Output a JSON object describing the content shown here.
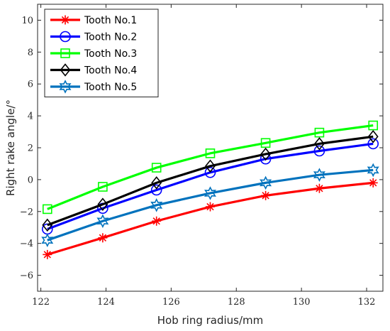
{
  "chart_data": {
    "type": "line",
    "title": "",
    "xlabel": "Hob ring radius/mm",
    "ylabel": "Right rake angle/°",
    "xlim": [
      121.9,
      132.5
    ],
    "ylim": [
      -7,
      11
    ],
    "xticks": [
      122,
      124,
      126,
      128,
      130,
      132
    ],
    "yticks": [
      -6,
      -4,
      -2,
      0,
      2,
      4,
      6,
      8,
      10
    ],
    "grid": false,
    "legend_position": "top-left",
    "x": [
      122.2,
      123.9,
      125.55,
      127.2,
      128.9,
      130.55,
      132.2
    ],
    "series": [
      {
        "name": "Tooth No.1",
        "color": "#ff0000",
        "marker": "asterisk",
        "values": [
          -4.7,
          -3.65,
          -2.6,
          -1.7,
          -1.0,
          -0.55,
          -0.2
        ]
      },
      {
        "name": "Tooth No.2",
        "color": "#0000ff",
        "marker": "circle",
        "values": [
          -3.1,
          -1.8,
          -0.65,
          0.45,
          1.3,
          1.8,
          2.25
        ]
      },
      {
        "name": "Tooth No.3",
        "color": "#00ff00",
        "marker": "square",
        "values": [
          -1.85,
          -0.45,
          0.75,
          1.65,
          2.3,
          2.95,
          3.4
        ]
      },
      {
        "name": "Tooth No.4",
        "color": "#000000",
        "marker": "diamond",
        "values": [
          -2.85,
          -1.55,
          -0.2,
          0.85,
          1.6,
          2.25,
          2.7
        ]
      },
      {
        "name": "Tooth No.5",
        "color": "#0072bd",
        "marker": "hexagram",
        "values": [
          -3.8,
          -2.6,
          -1.6,
          -0.85,
          -0.2,
          0.3,
          0.6
        ]
      }
    ]
  }
}
